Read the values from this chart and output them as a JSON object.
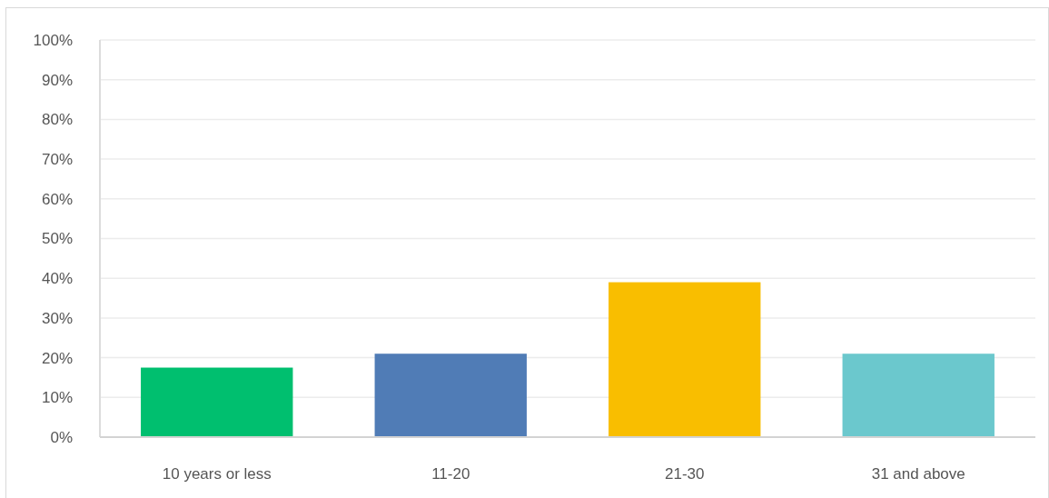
{
  "chart_data": {
    "type": "bar",
    "categories": [
      "10 years or less",
      "11-20",
      "21-30",
      "31 and above"
    ],
    "values": [
      17.5,
      21,
      39,
      21
    ],
    "colors": [
      "#00bf6f",
      "#507cb6",
      "#f9be00",
      "#6bc8cd"
    ],
    "ylim": [
      0,
      100
    ],
    "yticks": [
      {
        "value": 0,
        "label": "0%"
      },
      {
        "value": 10,
        "label": "10%"
      },
      {
        "value": 20,
        "label": "20%"
      },
      {
        "value": 30,
        "label": "30%"
      },
      {
        "value": 40,
        "label": "40%"
      },
      {
        "value": 50,
        "label": "50%"
      },
      {
        "value": 60,
        "label": "60%"
      },
      {
        "value": 70,
        "label": "70%"
      },
      {
        "value": 80,
        "label": "80%"
      },
      {
        "value": 90,
        "label": "90%"
      },
      {
        "value": 100,
        "label": "100%"
      }
    ],
    "grid": "y"
  }
}
